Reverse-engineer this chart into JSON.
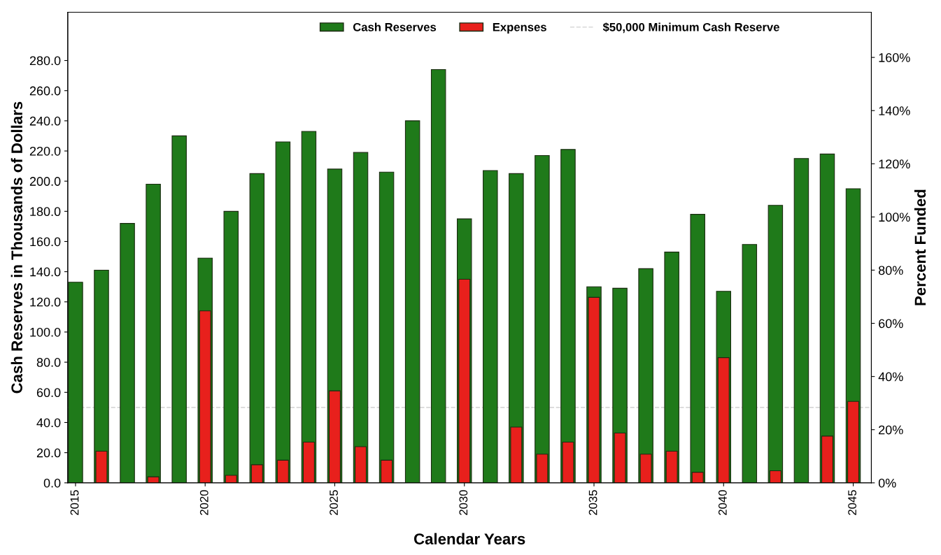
{
  "chart_data": {
    "type": "bar",
    "xlabel": "Calendar Years",
    "ylabel": "Cash Reserves in Thousands of Dollars",
    "y2label": "Percent Funded",
    "x": [
      2015,
      2016,
      2017,
      2018,
      2019,
      2020,
      2021,
      2022,
      2023,
      2024,
      2025,
      2026,
      2027,
      2028,
      2029,
      2030,
      2031,
      2032,
      2033,
      2034,
      2035,
      2036,
      2037,
      2038,
      2039,
      2040,
      2041,
      2042,
      2043,
      2044,
      2045
    ],
    "series": [
      {
        "name": "Cash Reserves",
        "color": "#1f7a1a",
        "values": [
          133,
          141,
          172,
          198,
          230,
          149,
          180,
          205,
          226,
          233,
          208,
          219,
          206,
          240,
          274,
          175,
          207,
          205,
          217,
          221,
          130,
          129,
          142,
          153,
          178,
          127,
          158,
          184,
          215,
          218,
          195
        ]
      },
      {
        "name": "Expenses",
        "color": "#e8201c",
        "values": [
          null,
          21,
          null,
          4,
          null,
          114,
          5,
          12,
          15,
          27,
          61,
          24,
          15,
          null,
          null,
          135,
          null,
          37,
          19,
          27,
          123,
          33,
          19,
          21,
          7,
          83,
          null,
          8,
          null,
          31,
          54
        ]
      }
    ],
    "ref_lines": [
      {
        "axis": "y",
        "value": 50,
        "label": "$50,000 Minimum Cash Reserve",
        "color": "#d8d8d8",
        "line_style": "dashed"
      }
    ],
    "xlim": [
      2014.7,
      2045.7
    ],
    "xticks": [
      2015,
      2020,
      2025,
      2030,
      2035,
      2040,
      2045
    ],
    "ylim": [
      0,
      312
    ],
    "yticks": [
      {
        "value": 0,
        "label": "0.0"
      },
      {
        "value": 20,
        "label": "20.0"
      },
      {
        "value": 40,
        "label": "40.0"
      },
      {
        "value": 60,
        "label": "60.0"
      },
      {
        "value": 80,
        "label": "80.0"
      },
      {
        "value": 100,
        "label": "100.0"
      },
      {
        "value": 120,
        "label": "120.0"
      },
      {
        "value": 140,
        "label": "140.0"
      },
      {
        "value": 160,
        "label": "160.0"
      },
      {
        "value": 180,
        "label": "180.0"
      },
      {
        "value": 200,
        "label": "200.0"
      },
      {
        "value": 220,
        "label": "220.0"
      },
      {
        "value": 240,
        "label": "240.0"
      },
      {
        "value": 260,
        "label": "260.0"
      },
      {
        "value": 280,
        "label": "280.0"
      }
    ],
    "y2lim": [
      0,
      177
    ],
    "y2ticks": [
      {
        "value": 0,
        "label": "0%"
      },
      {
        "value": 20,
        "label": "20%"
      },
      {
        "value": 40,
        "label": "40%"
      },
      {
        "value": 60,
        "label": "60%"
      },
      {
        "value": 80,
        "label": "80%"
      },
      {
        "value": 100,
        "label": "100%"
      },
      {
        "value": 120,
        "label": "120%"
      },
      {
        "value": 140,
        "label": "140%"
      },
      {
        "value": 160,
        "label": "160%"
      }
    ],
    "grid": false,
    "legend": "top"
  }
}
